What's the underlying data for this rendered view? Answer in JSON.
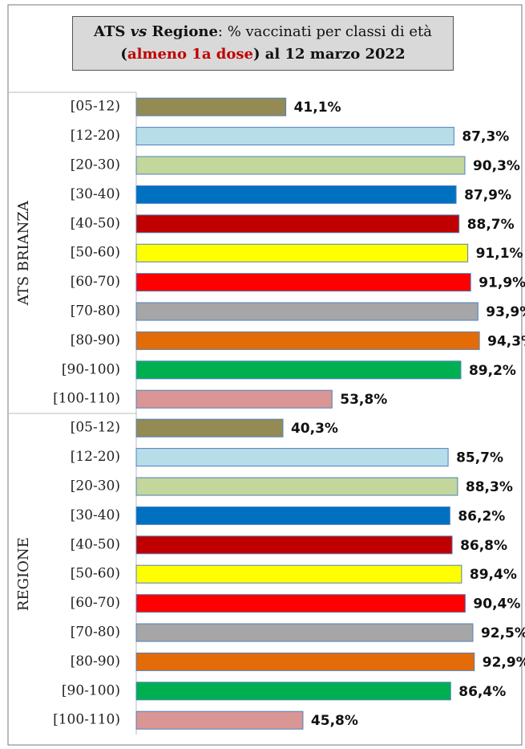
{
  "chart_data": {
    "type": "bar",
    "title": [
      "ATS",
      "vs",
      "Regione",
      ": % vaccinati per classi di età",
      "(",
      "almeno 1a dose",
      ") al 12 marzo 2022"
    ],
    "colors": [
      "#948a54",
      "#b7dde8",
      "#c3d69b",
      "#0070c0",
      "#c00000",
      "#ffff00",
      "#ff0000",
      "#a6a6a6",
      "#e36c09",
      "#00b050",
      "#d99694"
    ],
    "groups": [
      {
        "name": "ATS BRIANZA",
        "categories": [
          "[05-12)",
          "[12-20)",
          "[20-30)",
          "[30-40)",
          "[40-50)",
          "[50-60)",
          "[60-70)",
          "[70-80)",
          "[80-90)",
          "[90-100)",
          "[100-110)"
        ],
        "values": [
          41.1,
          87.3,
          90.3,
          87.9,
          88.7,
          91.1,
          91.9,
          93.9,
          94.3,
          89.2,
          53.8
        ],
        "value_labels": [
          "41,1%",
          "87,3%",
          "90,3%",
          "87,9%",
          "88,7%",
          "91,1%",
          "91,9%",
          "93,9%",
          "94,3%",
          "89,2%",
          "53,8%"
        ]
      },
      {
        "name": "REGIONE",
        "categories": [
          "[05-12)",
          "[12-20)",
          "[20-30)",
          "[30-40)",
          "[40-50)",
          "[50-60)",
          "[60-70)",
          "[70-80)",
          "[80-90)",
          "[90-100)",
          "[100-110)"
        ],
        "values": [
          40.3,
          85.7,
          88.3,
          86.2,
          86.8,
          89.4,
          90.4,
          92.5,
          92.9,
          86.4,
          45.8
        ],
        "value_labels": [
          "40,3%",
          "85,7%",
          "88,3%",
          "86,2%",
          "86,8%",
          "89,4%",
          "90,4%",
          "92,5%",
          "92,9%",
          "86,4%",
          "45,8%"
        ]
      }
    ]
  }
}
